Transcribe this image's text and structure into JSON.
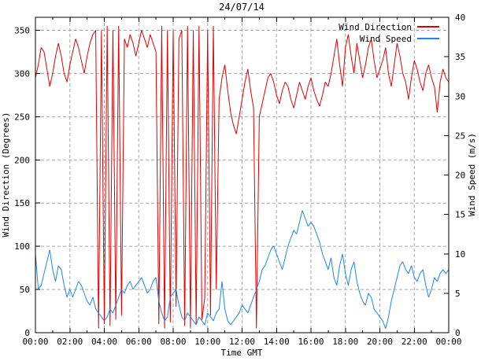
{
  "title": "24/07/14",
  "axes": {
    "x": {
      "label": "Time GMT",
      "tick_labels": [
        "00:00",
        "02:00",
        "04:00",
        "06:00",
        "08:00",
        "10:00",
        "12:00",
        "14:00",
        "16:00",
        "18:00",
        "20:00",
        "22:00",
        "00:00"
      ],
      "major_tick_hours": [
        0,
        2,
        4,
        6,
        8,
        10,
        12,
        14,
        16,
        18,
        20,
        22,
        24
      ],
      "minor_tick_every_hours": 1
    },
    "y_left": {
      "label": "Wind Direction (Degrees)",
      "ticks": [
        0,
        50,
        100,
        150,
        200,
        250,
        300,
        350
      ],
      "range": [
        0,
        365
      ]
    },
    "y_right": {
      "label": "Wind Speed (m/s)",
      "ticks": [
        0,
        5,
        10,
        15,
        20,
        25,
        30,
        35,
        40
      ],
      "range": [
        0,
        40
      ]
    }
  },
  "legend": {
    "position": "top-right",
    "entries": [
      {
        "label": "Wind Direction",
        "color": "#e00000"
      },
      {
        "label": "Wind Speed",
        "color": "#1c86ee"
      }
    ]
  },
  "colors": {
    "wind_direction": "#e00000",
    "wind_speed": "#1c86ee",
    "grid": "#a6a6a6",
    "border": "#000000",
    "background": "#ffffff"
  },
  "chart_data": {
    "type": "line",
    "title": "24/07/14",
    "xlabel": "Time GMT",
    "x_start_hour": 0,
    "x_end_hour": 24,
    "x_step_minutes": 10,
    "ylim_left": [
      0,
      365
    ],
    "ylim_right": [
      0,
      40
    ],
    "grid": true,
    "legend_position": "top-right",
    "series": [
      {
        "name": "Wind Direction",
        "axis": "left",
        "unit": "degrees",
        "color": "#e00000",
        "values": [
          295,
          310,
          330,
          325,
          305,
          285,
          300,
          320,
          335,
          320,
          300,
          290,
          310,
          325,
          340,
          330,
          315,
          300,
          320,
          335,
          345,
          350,
          5,
          350,
          10,
          355,
          8,
          350,
          15,
          355,
          20,
          340,
          330,
          345,
          335,
          320,
          335,
          350,
          340,
          330,
          345,
          335,
          325,
          10,
          355,
          5,
          350,
          12,
          350,
          30,
          340,
          350,
          8,
          355,
          5,
          350,
          10,
          355,
          15,
          40,
          350,
          20,
          355,
          50,
          270,
          295,
          310,
          280,
          255,
          240,
          230,
          250,
          270,
          290,
          305,
          280,
          260,
          5,
          250,
          265,
          280,
          295,
          300,
          290,
          275,
          265,
          280,
          290,
          285,
          270,
          260,
          275,
          290,
          280,
          270,
          285,
          295,
          280,
          270,
          262,
          275,
          290,
          285,
          300,
          320,
          340,
          310,
          285,
          330,
          345,
          320,
          300,
          335,
          315,
          295,
          310,
          330,
          340,
          315,
          295,
          305,
          315,
          330,
          300,
          285,
          310,
          335,
          320,
          300,
          290,
          270,
          295,
          315,
          305,
          290,
          280,
          300,
          310,
          295,
          285,
          255,
          290,
          305,
          295,
          290
        ]
      },
      {
        "name": "Wind Speed",
        "axis": "right",
        "unit": "m/s",
        "color": "#1c86ee",
        "values": [
          10,
          5.5,
          6,
          7.5,
          9,
          10.5,
          8,
          6.5,
          8.5,
          8,
          6,
          4.5,
          5.5,
          4.5,
          5.5,
          6.5,
          6,
          5,
          4,
          3.5,
          4.5,
          3,
          2.5,
          2,
          1.5,
          2,
          3,
          2.5,
          3.5,
          4.5,
          5.5,
          5,
          6,
          6.5,
          5.5,
          6,
          6.5,
          7,
          6,
          5,
          5.5,
          6.5,
          7,
          4,
          2.5,
          1.5,
          2,
          4.5,
          5,
          5.5,
          3.5,
          2,
          1.5,
          2.5,
          2,
          1.5,
          1,
          2,
          1.5,
          1,
          2.5,
          2,
          1.5,
          2.5,
          3,
          6.5,
          3,
          1.5,
          1,
          1.5,
          2,
          2.5,
          3.5,
          3,
          2.5,
          3.5,
          4.5,
          5.5,
          6.5,
          8,
          8.5,
          9.5,
          10.5,
          11,
          10,
          9,
          8,
          9.5,
          11,
          12,
          13,
          12.5,
          14,
          15.5,
          14.5,
          13.5,
          14,
          13.5,
          12.5,
          11.5,
          10,
          9,
          8,
          9.5,
          7,
          6,
          8.5,
          10,
          7.5,
          6,
          8,
          9,
          6.5,
          5,
          4,
          3.5,
          5,
          4.5,
          3,
          2.5,
          2,
          1.5,
          0.5,
          2,
          4,
          5.5,
          7,
          8.5,
          9,
          8,
          7.5,
          8.5,
          7,
          6.5,
          7.5,
          8,
          6,
          4.5,
          5.5,
          7,
          6.5,
          7.5,
          8,
          7.5,
          8
        ]
      }
    ]
  }
}
